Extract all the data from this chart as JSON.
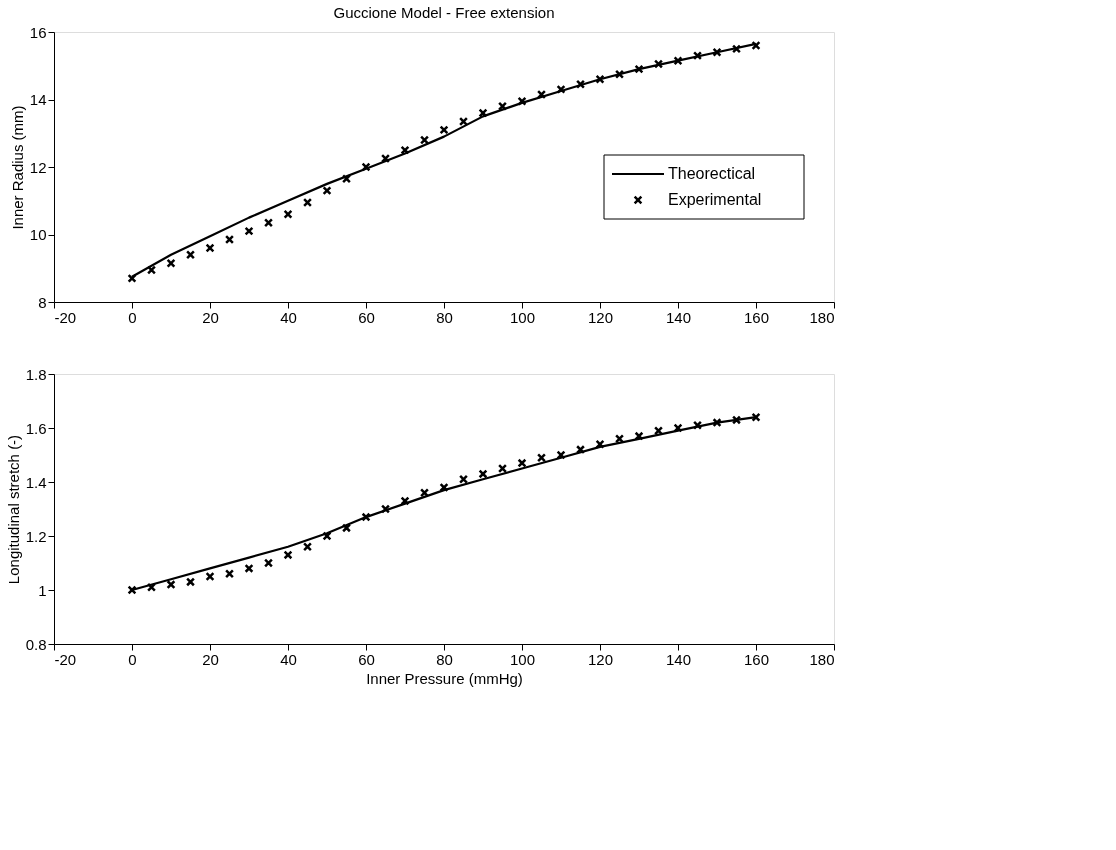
{
  "chart_data": [
    {
      "type": "line",
      "title": "Guccione Model - Free extension",
      "ylabel": "Inner Radius (mm)",
      "xlim": [
        -20,
        180
      ],
      "xticks": [
        -20,
        0,
        20,
        40,
        60,
        80,
        100,
        120,
        140,
        160,
        180
      ],
      "ylim": [
        8,
        16
      ],
      "yticks": [
        8,
        10,
        12,
        14,
        16
      ],
      "legend": "right",
      "series": [
        {
          "name": "Theorectical",
          "color": "#000000",
          "line_style": "solid",
          "x": [
            0,
            10,
            20,
            30,
            40,
            50,
            60,
            70,
            80,
            90,
            100,
            110,
            120,
            130,
            140,
            150,
            160
          ],
          "values": [
            8.75,
            9.4,
            9.95,
            10.5,
            11.0,
            11.5,
            11.95,
            12.4,
            12.9,
            13.5,
            13.9,
            14.25,
            14.6,
            14.9,
            15.15,
            15.4,
            15.65
          ]
        },
        {
          "name": "Experimental",
          "type": "scatter",
          "marker": "cross",
          "color": "#000000",
          "x": [
            0,
            5,
            10,
            15,
            20,
            25,
            30,
            35,
            40,
            45,
            50,
            55,
            60,
            65,
            70,
            75,
            80,
            85,
            90,
            95,
            100,
            105,
            110,
            115,
            120,
            125,
            130,
            135,
            140,
            145,
            150,
            155,
            160
          ],
          "values": [
            8.7,
            8.95,
            9.15,
            9.4,
            9.6,
            9.85,
            10.1,
            10.35,
            10.6,
            10.95,
            11.3,
            11.65,
            12.0,
            12.25,
            12.5,
            12.8,
            13.1,
            13.35,
            13.6,
            13.8,
            13.95,
            14.15,
            14.3,
            14.45,
            14.6,
            14.75,
            14.9,
            15.05,
            15.15,
            15.3,
            15.4,
            15.5,
            15.6
          ]
        }
      ]
    },
    {
      "type": "line",
      "xlabel": "Inner Pressure (mmHg)",
      "ylabel": "Longitudinal stretch (-)",
      "xlim": [
        -20,
        180
      ],
      "xticks": [
        -20,
        0,
        20,
        40,
        60,
        80,
        100,
        120,
        140,
        160,
        180
      ],
      "ylim": [
        0.8,
        1.8
      ],
      "yticks": [
        0.8,
        1,
        1.2,
        1.4,
        1.6,
        1.8
      ],
      "series": [
        {
          "color": "#000000",
          "line_style": "solid",
          "x": [
            0,
            10,
            20,
            30,
            40,
            50,
            60,
            70,
            80,
            90,
            100,
            110,
            120,
            130,
            140,
            150,
            160
          ],
          "values": [
            1.0,
            1.04,
            1.08,
            1.12,
            1.16,
            1.21,
            1.27,
            1.32,
            1.37,
            1.41,
            1.45,
            1.49,
            1.53,
            1.56,
            1.59,
            1.62,
            1.64
          ]
        },
        {
          "type": "scatter",
          "marker": "cross",
          "color": "#000000",
          "x": [
            0,
            5,
            10,
            15,
            20,
            25,
            30,
            35,
            40,
            45,
            50,
            55,
            60,
            65,
            70,
            75,
            80,
            85,
            90,
            95,
            100,
            105,
            110,
            115,
            120,
            125,
            130,
            135,
            140,
            145,
            150,
            155,
            160
          ],
          "values": [
            1.0,
            1.01,
            1.02,
            1.03,
            1.05,
            1.06,
            1.08,
            1.1,
            1.13,
            1.16,
            1.2,
            1.23,
            1.27,
            1.3,
            1.33,
            1.36,
            1.38,
            1.41,
            1.43,
            1.45,
            1.47,
            1.49,
            1.5,
            1.52,
            1.54,
            1.56,
            1.57,
            1.59,
            1.6,
            1.61,
            1.62,
            1.63,
            1.64
          ]
        }
      ]
    }
  ]
}
